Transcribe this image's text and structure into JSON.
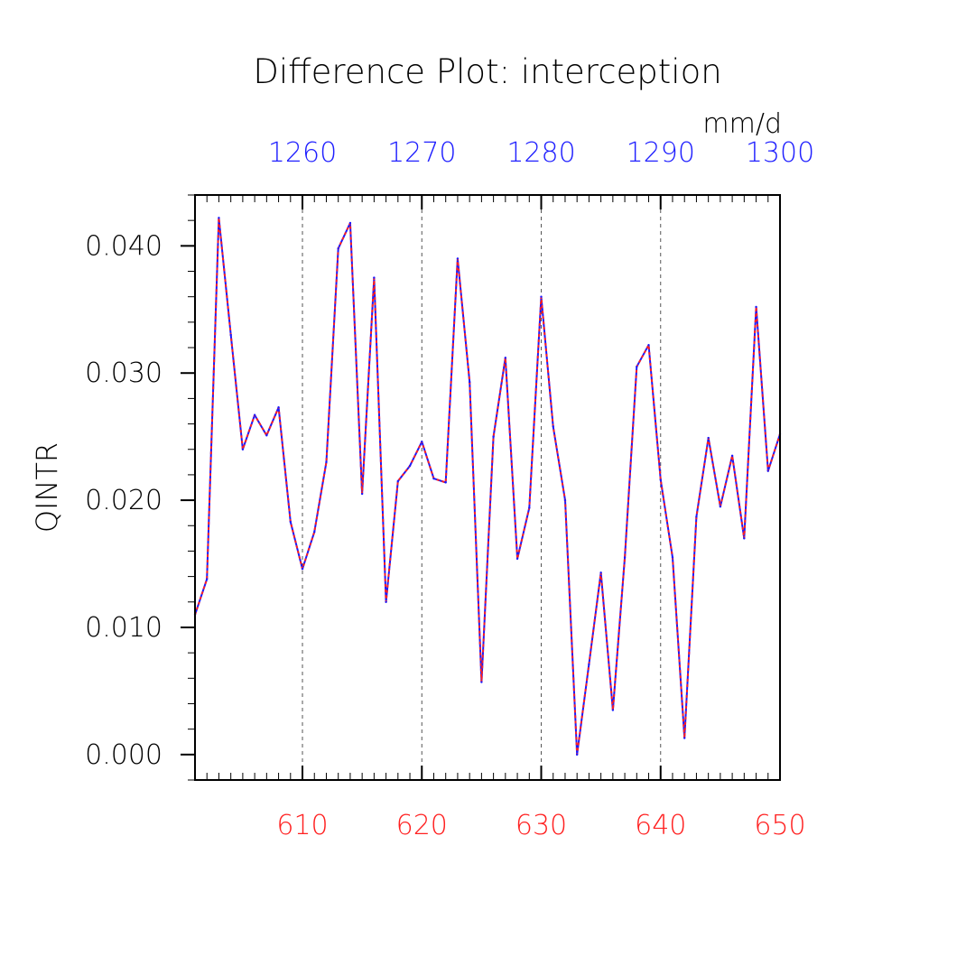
{
  "chart_data": {
    "type": "line",
    "title": "Difference Plot: interception",
    "ylabel": "QINTR",
    "units": "mm/d",
    "xlim": [
      601,
      650
    ],
    "xlim_top": [
      1251,
      1300
    ],
    "ylim": [
      -0.002,
      0.044
    ],
    "grid": "vertical dashed at major bottom ticks",
    "x_ticks": [
      "610",
      "620",
      "630",
      "640",
      "650"
    ],
    "x_ticks_top": [
      "1260",
      "1270",
      "1280",
      "1290",
      "1300"
    ],
    "y_ticks": [
      "0.000",
      "0.010",
      "0.020",
      "0.030",
      "0.040"
    ],
    "colors": {
      "bottom_axis": "#ff2020",
      "top_axis": "#2020ff",
      "series_a": "#1a1aff",
      "series_b": "#ff2020"
    },
    "x": [
      601,
      602,
      603,
      604,
      605,
      606,
      607,
      608,
      609,
      610,
      611,
      612,
      613,
      614,
      615,
      616,
      617,
      618,
      619,
      620,
      621,
      622,
      623,
      624,
      625,
      626,
      627,
      628,
      629,
      630,
      631,
      632,
      633,
      634,
      635,
      636,
      637,
      638,
      639,
      640,
      641,
      642,
      643,
      644,
      645,
      646,
      647,
      648,
      649,
      650
    ],
    "x_top": [
      1251,
      1252,
      1253,
      1254,
      1255,
      1256,
      1257,
      1258,
      1259,
      1260,
      1261,
      1262,
      1263,
      1264,
      1265,
      1266,
      1267,
      1268,
      1269,
      1270,
      1271,
      1272,
      1273,
      1274,
      1275,
      1276,
      1277,
      1278,
      1279,
      1280,
      1281,
      1282,
      1283,
      1284,
      1285,
      1286,
      1287,
      1288,
      1289,
      1290,
      1291,
      1292,
      1293,
      1294,
      1295,
      1296,
      1297,
      1298,
      1299,
      1300
    ],
    "y": [
      0.011,
      0.0138,
      0.0422,
      0.033,
      0.024,
      0.0267,
      0.0251,
      0.0273,
      0.0183,
      0.0146,
      0.0175,
      0.023,
      0.0398,
      0.0418,
      0.0205,
      0.0375,
      0.012,
      0.0215,
      0.0227,
      0.0246,
      0.0217,
      0.0214,
      0.039,
      0.0293,
      0.0057,
      0.025,
      0.0312,
      0.0154,
      0.0194,
      0.036,
      0.0258,
      0.02,
      0.0,
      0.0071,
      0.0143,
      0.0035,
      0.0155,
      0.0305,
      0.0322,
      0.0216,
      0.0155,
      0.0013,
      0.0187,
      0.0249,
      0.0195,
      0.0235,
      0.017,
      0.0352,
      0.0223,
      0.0252
    ]
  }
}
